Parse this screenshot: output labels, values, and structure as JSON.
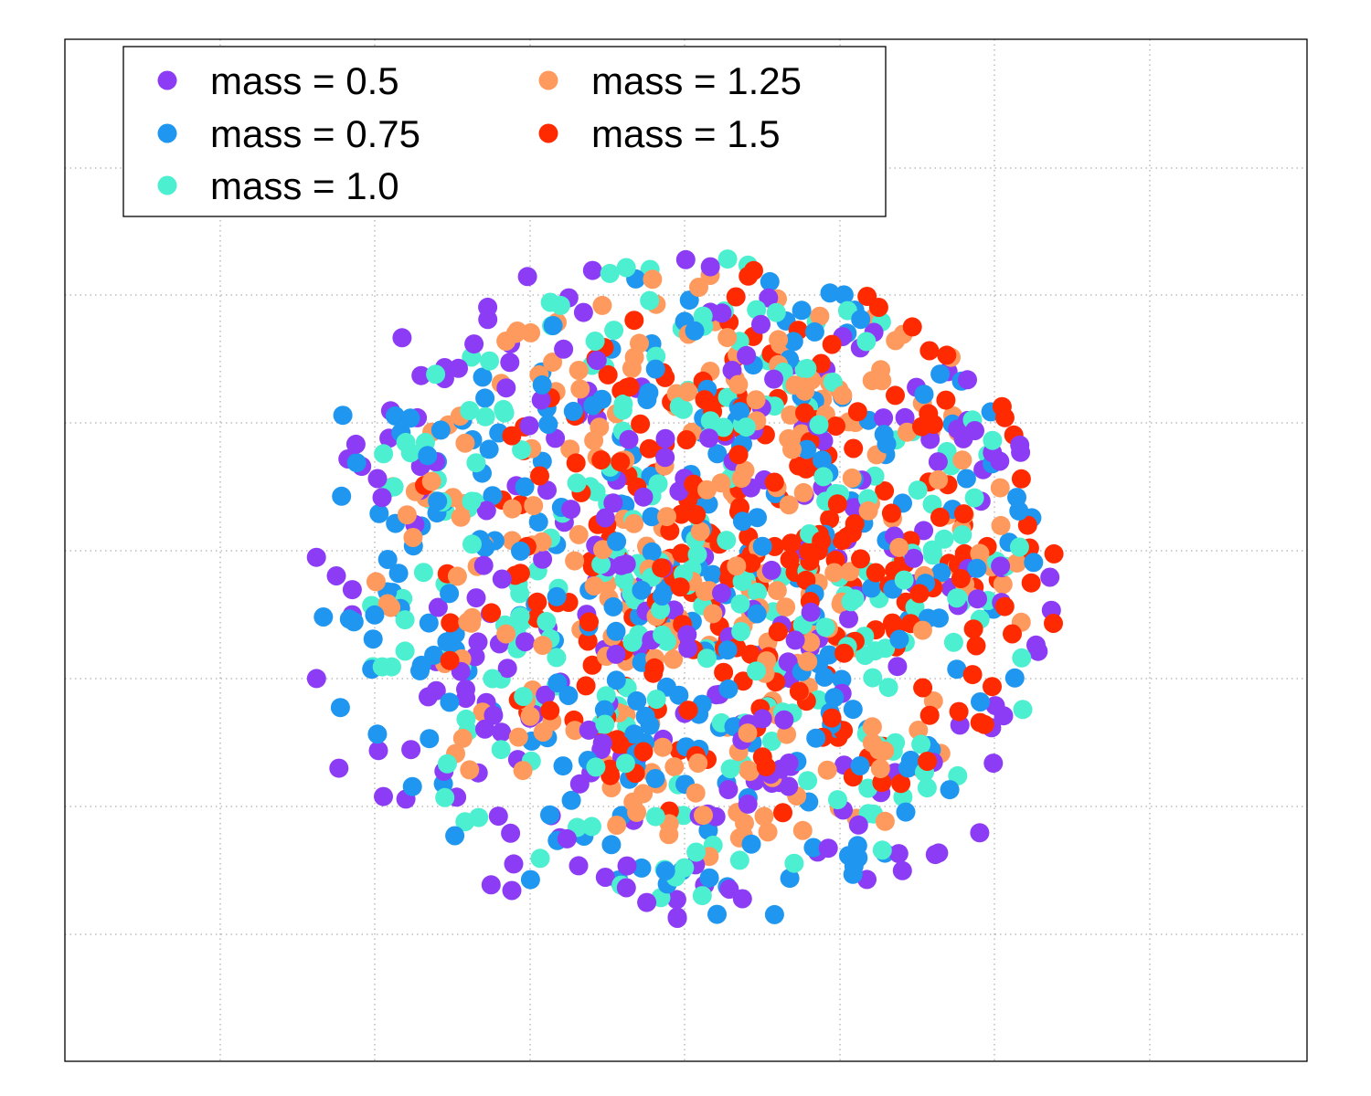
{
  "chart_data": {
    "type": "scatter",
    "title": "",
    "xlabel": "",
    "ylabel": "",
    "grid": true,
    "legend_placement": "top-left",
    "xlim": [
      0,
      8
    ],
    "ylim": [
      -8,
      0
    ],
    "series": [
      {
        "name": "mass = 0.5",
        "color": "#8c3cf5",
        "count": 270
      },
      {
        "name": "mass = 0.75",
        "color": "#1f96ef",
        "count": 270
      },
      {
        "name": "mass = 1.0",
        "color": "#4cefcf",
        "count": 270
      },
      {
        "name": "mass = 1.25",
        "color": "#ff9a5e",
        "count": 270
      },
      {
        "name": "mass = 1.5",
        "color": "#ff2a00",
        "count": 270
      }
    ]
  }
}
